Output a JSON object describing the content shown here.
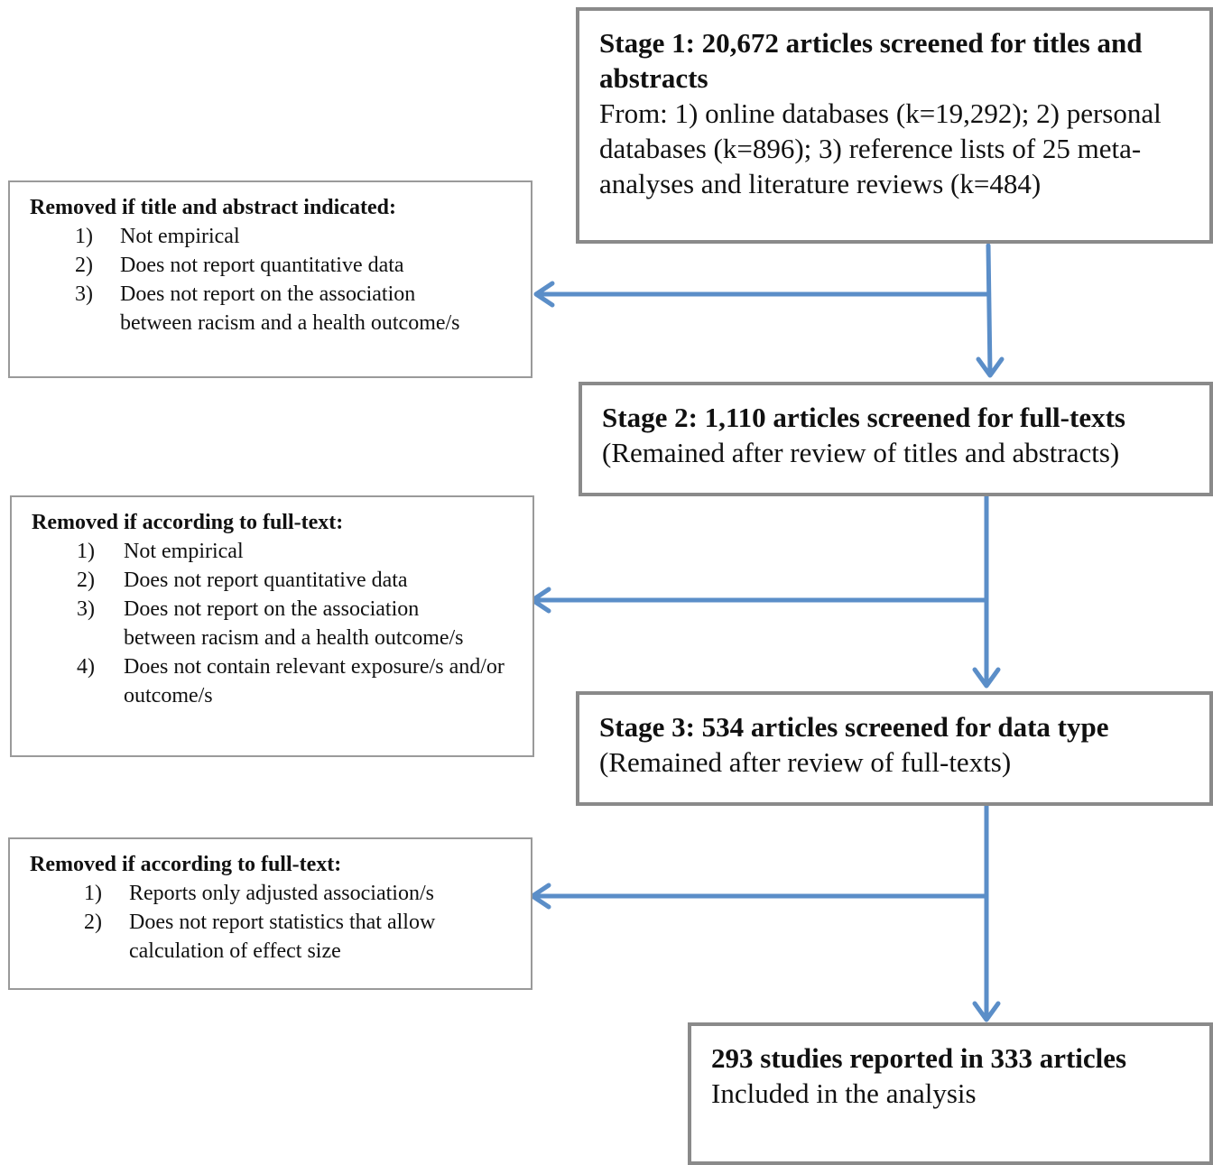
{
  "stage1": {
    "title": "Stage 1: 20,672 articles screened for titles and abstracts",
    "body": "From: 1) online databases (k=19,292); 2) personal databases (k=896); 3) reference lists of 25 meta-analyses and literature reviews (k=484)"
  },
  "stage2": {
    "title": "Stage 2: 1,110 articles screened for full-texts",
    "body": "(Remained after review of titles and abstracts)"
  },
  "stage3": {
    "title": "Stage 3: 534 articles screened for data type",
    "body": "(Remained after review of full-texts)"
  },
  "final": {
    "title": "293 studies reported in 333 articles",
    "body": "Included in the analysis"
  },
  "exclusion1": {
    "title": "Removed if title and abstract indicated:",
    "items": [
      {
        "num": "1)",
        "text": "Not empirical"
      },
      {
        "num": "2)",
        "text": "Does not report quantitative data"
      },
      {
        "num": "3)",
        "text": "Does not report on the association between racism and a health outcome/s"
      }
    ]
  },
  "exclusion2": {
    "title": "Removed if according to full-text:",
    "items": [
      {
        "num": "1)",
        "text": "Not empirical"
      },
      {
        "num": "2)",
        "text": "Does not report quantitative data"
      },
      {
        "num": "3)",
        "text": "Does not report on the association between racism and a health outcome/s"
      },
      {
        "num": "4)",
        "text": "Does not contain relevant exposure/s and/or outcome/s"
      }
    ]
  },
  "exclusion3": {
    "title": "Removed if according to full-text:",
    "items": [
      {
        "num": "1)",
        "text": "Reports only adjusted association/s"
      },
      {
        "num": "2)",
        "text": "Does not report statistics that allow calculation of effect size"
      }
    ]
  },
  "colors": {
    "arrow": "#5b8ec8",
    "border": "#8a8a8a"
  }
}
